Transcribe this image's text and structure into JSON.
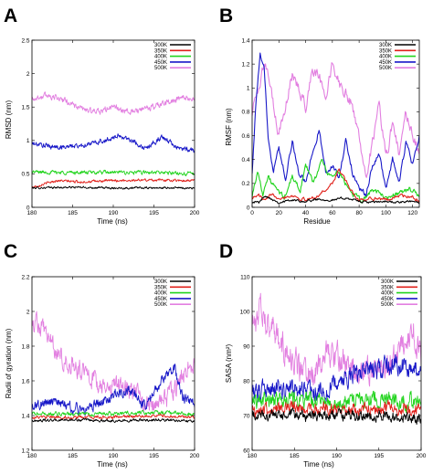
{
  "chart_data": [
    {
      "id": "A",
      "letter": "A",
      "type": "line",
      "xlabel": "Time (ns)",
      "ylabel": "RMSD (nm)",
      "xlim": [
        180,
        200
      ],
      "ylim": [
        0,
        2.5
      ],
      "xticks": [
        180,
        185,
        190,
        195,
        200
      ],
      "yticks": [
        0,
        0.5,
        1,
        1.5,
        2,
        2.5
      ],
      "legend_position": "top-right",
      "series": [
        {
          "name": "300K",
          "color": "#000000",
          "noise": 0.012,
          "x": [
            180,
            185,
            190,
            195,
            200
          ],
          "y": [
            0.29,
            0.3,
            0.29,
            0.29,
            0.29
          ]
        },
        {
          "name": "350K",
          "color": "#e0211b",
          "noise": 0.015,
          "x": [
            180,
            183,
            186,
            190,
            195,
            200
          ],
          "y": [
            0.3,
            0.4,
            0.38,
            0.4,
            0.41,
            0.4
          ]
        },
        {
          "name": "400K",
          "color": "#22d41e",
          "noise": 0.022,
          "x": [
            180,
            185,
            190,
            195,
            200
          ],
          "y": [
            0.53,
            0.52,
            0.52,
            0.52,
            0.5
          ]
        },
        {
          "name": "450K",
          "color": "#1818c8",
          "noise": 0.03,
          "x": [
            180,
            183,
            186,
            189,
            190.5,
            192,
            194,
            196,
            197,
            198,
            200
          ],
          "y": [
            0.95,
            0.9,
            0.92,
            1.0,
            1.07,
            1.02,
            0.88,
            1.05,
            0.97,
            0.88,
            0.86
          ]
        },
        {
          "name": "500K",
          "color": "#e27fe0",
          "noise": 0.035,
          "x": [
            180,
            182,
            184,
            186,
            188,
            190,
            192,
            194,
            196,
            198,
            200
          ],
          "y": [
            1.62,
            1.68,
            1.6,
            1.48,
            1.42,
            1.5,
            1.42,
            1.47,
            1.55,
            1.62,
            1.62
          ]
        }
      ]
    },
    {
      "id": "B",
      "letter": "B",
      "type": "line",
      "xlabel": "Residue",
      "ylabel": "RMSF (nm)",
      "xlim": [
        0,
        125
      ],
      "ylim": [
        0,
        1.4
      ],
      "xticks": [
        0,
        20,
        40,
        60,
        80,
        100,
        120
      ],
      "yticks": [
        0,
        0.2,
        0.4,
        0.6,
        0.8,
        1,
        1.2,
        1.4
      ],
      "legend_position": "top-right",
      "series": [
        {
          "name": "300K",
          "color": "#000000",
          "noise": 0.008,
          "x": [
            0,
            5,
            10,
            20,
            30,
            40,
            50,
            60,
            70,
            80,
            90,
            100,
            110,
            120,
            125
          ],
          "y": [
            0.05,
            0.04,
            0.1,
            0.04,
            0.06,
            0.05,
            0.07,
            0.06,
            0.08,
            0.05,
            0.04,
            0.05,
            0.04,
            0.05,
            0.04
          ]
        },
        {
          "name": "350K",
          "color": "#e0211b",
          "noise": 0.012,
          "x": [
            0,
            5,
            10,
            15,
            20,
            30,
            40,
            50,
            60,
            65,
            70,
            75,
            80,
            90,
            100,
            110,
            120,
            125
          ],
          "y": [
            0.08,
            0.1,
            0.05,
            0.12,
            0.08,
            0.1,
            0.06,
            0.1,
            0.2,
            0.32,
            0.22,
            0.12,
            0.06,
            0.08,
            0.06,
            0.1,
            0.08,
            0.06
          ]
        },
        {
          "name": "400K",
          "color": "#22d41e",
          "noise": 0.018,
          "x": [
            0,
            4,
            8,
            12,
            18,
            24,
            30,
            36,
            40,
            46,
            52,
            58,
            64,
            70,
            76,
            82,
            90,
            100,
            110,
            118,
            125
          ],
          "y": [
            0.1,
            0.3,
            0.12,
            0.25,
            0.15,
            0.08,
            0.25,
            0.15,
            0.35,
            0.2,
            0.4,
            0.25,
            0.3,
            0.2,
            0.1,
            0.05,
            0.15,
            0.08,
            0.12,
            0.15,
            0.1
          ]
        },
        {
          "name": "450K",
          "color": "#1818c8",
          "noise": 0.02,
          "x": [
            0,
            3,
            6,
            9,
            12,
            16,
            20,
            25,
            30,
            35,
            40,
            45,
            50,
            55,
            60,
            65,
            70,
            75,
            80,
            85,
            90,
            95,
            100,
            105,
            110,
            115,
            120,
            125
          ],
          "y": [
            0.3,
            0.9,
            1.27,
            1.15,
            0.6,
            0.3,
            0.5,
            0.25,
            0.55,
            0.3,
            0.2,
            0.45,
            0.65,
            0.3,
            0.35,
            0.25,
            0.55,
            0.3,
            0.15,
            0.1,
            0.35,
            0.45,
            0.15,
            0.4,
            0.2,
            0.55,
            0.35,
            0.6
          ]
        },
        {
          "name": "500K",
          "color": "#e27fe0",
          "noise": 0.04,
          "x": [
            0,
            5,
            10,
            15,
            20,
            25,
            30,
            35,
            40,
            45,
            50,
            55,
            60,
            65,
            70,
            75,
            80,
            85,
            90,
            95,
            100,
            105,
            110,
            115,
            120,
            125
          ],
          "y": [
            0.8,
            1.05,
            1.2,
            0.9,
            0.6,
            0.85,
            1.1,
            1.0,
            0.85,
            1.15,
            1.1,
            0.95,
            1.2,
            1.05,
            0.95,
            0.85,
            0.6,
            0.25,
            0.55,
            0.85,
            0.4,
            0.7,
            0.45,
            0.8,
            0.6,
            0.45
          ]
        }
      ]
    },
    {
      "id": "C",
      "letter": "C",
      "type": "line",
      "xlabel": "Time (ns)",
      "ylabel": "Radii of gyration (nm)",
      "xlim": [
        180,
        200
      ],
      "ylim": [
        1.2,
        2.2
      ],
      "xticks": [
        180,
        185,
        190,
        195,
        200
      ],
      "yticks": [
        1.2,
        1.4,
        1.6,
        1.8,
        2,
        2.2
      ],
      "legend_position": "top-right",
      "series": [
        {
          "name": "300K",
          "color": "#000000",
          "noise": 0.006,
          "x": [
            180,
            185,
            190,
            195,
            200
          ],
          "y": [
            1.37,
            1.375,
            1.37,
            1.375,
            1.37
          ]
        },
        {
          "name": "350K",
          "color": "#e0211b",
          "noise": 0.007,
          "x": [
            180,
            185,
            190,
            195,
            200
          ],
          "y": [
            1.39,
            1.39,
            1.39,
            1.4,
            1.39
          ]
        },
        {
          "name": "400K",
          "color": "#22d41e",
          "noise": 0.009,
          "x": [
            180,
            185,
            190,
            195,
            200
          ],
          "y": [
            1.41,
            1.41,
            1.41,
            1.42,
            1.41
          ]
        },
        {
          "name": "450K",
          "color": "#1818c8",
          "noise": 0.025,
          "x": [
            180,
            182,
            184,
            186,
            188,
            190,
            192,
            194,
            196,
            197.5,
            198.5,
            200
          ],
          "y": [
            1.45,
            1.48,
            1.46,
            1.43,
            1.47,
            1.52,
            1.55,
            1.45,
            1.6,
            1.68,
            1.5,
            1.48
          ]
        },
        {
          "name": "500K",
          "color": "#e27fe0",
          "noise": 0.045,
          "x": [
            180,
            181.5,
            183,
            185,
            187,
            189,
            191,
            193,
            195,
            197,
            199,
            200
          ],
          "y": [
            1.95,
            1.9,
            1.75,
            1.7,
            1.62,
            1.55,
            1.58,
            1.5,
            1.45,
            1.52,
            1.65,
            1.72
          ]
        }
      ]
    },
    {
      "id": "D",
      "letter": "D",
      "type": "line",
      "xlabel": "Time (ns)",
      "ylabel": "SASA (nm²)",
      "xlim": [
        180,
        200
      ],
      "ylim": [
        60,
        110
      ],
      "xticks": [
        180,
        185,
        190,
        195,
        200
      ],
      "yticks": [
        60,
        70,
        80,
        90,
        100,
        110
      ],
      "legend_position": "top-right",
      "series": [
        {
          "name": "300K",
          "color": "#000000",
          "noise": 1.2,
          "x": [
            180,
            185,
            190,
            195,
            200
          ],
          "y": [
            70,
            70,
            70,
            70,
            69
          ]
        },
        {
          "name": "350K",
          "color": "#e0211b",
          "noise": 1.4,
          "x": [
            180,
            185,
            190,
            195,
            200
          ],
          "y": [
            71.5,
            72,
            72,
            72,
            72
          ]
        },
        {
          "name": "400K",
          "color": "#22d41e",
          "noise": 1.8,
          "x": [
            180,
            185,
            190,
            195,
            200
          ],
          "y": [
            74,
            74.5,
            74,
            75,
            74
          ]
        },
        {
          "name": "450K",
          "color": "#1818c8",
          "noise": 2.2,
          "x": [
            180,
            183,
            186,
            189,
            192,
            195,
            197,
            200
          ],
          "y": [
            76,
            78,
            77,
            78,
            82,
            83,
            85,
            82
          ]
        },
        {
          "name": "500K",
          "color": "#e27fe0",
          "noise": 3.2,
          "x": [
            180,
            181,
            183,
            185,
            187,
            189,
            191,
            193,
            195,
            197,
            199,
            200
          ],
          "y": [
            95,
            100,
            92,
            85,
            80,
            88,
            85,
            82,
            83,
            87,
            95,
            88
          ]
        }
      ]
    }
  ]
}
